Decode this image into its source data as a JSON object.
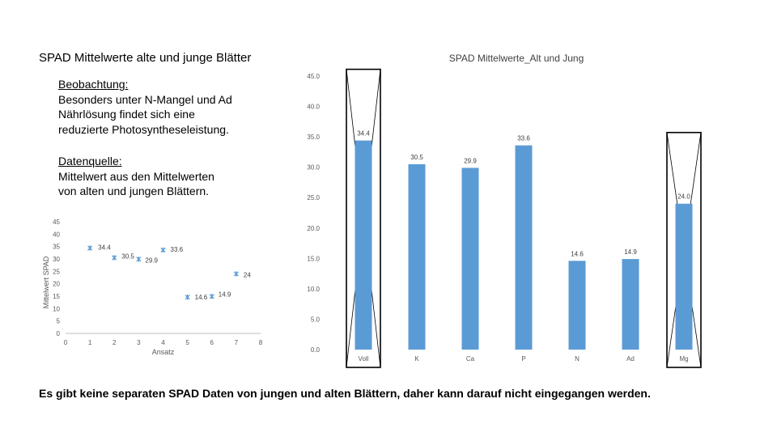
{
  "slide": {
    "title": "SPAD Mittelwerte alte und junge Blätter",
    "observation_heading": "Beobachtung:",
    "observation_lines": [
      "Besonders unter N-Mangel und Ad",
      "Nährlösung findet sich eine",
      "reduzierte Photosyntheseleistung."
    ],
    "source_heading": "Datenquelle:",
    "source_lines": [
      "Mittelwert aus den Mittelwerten",
      "von alten und jungen Blättern."
    ],
    "footer": "Es gibt keine separaten SPAD Daten von jungen und alten Blättern, daher kann darauf nicht eingegangen werden."
  },
  "chart_data": [
    {
      "type": "scatter",
      "title": "",
      "xlabel": "Ansatz",
      "ylabel": "Mittelwert SPAD",
      "xlim": [
        0,
        8
      ],
      "ylim": [
        0,
        45
      ],
      "x_ticks": [
        "0",
        "1",
        "2",
        "3",
        "4",
        "5",
        "6",
        "7",
        "8"
      ],
      "y_ticks": [
        "0",
        "5",
        "10",
        "15",
        "20",
        "25",
        "30",
        "35",
        "40",
        "45"
      ],
      "marker_color": "#5b9bd5",
      "points": [
        {
          "x": 1,
          "y": 34.4,
          "label": "34.4"
        },
        {
          "x": 2,
          "y": 30.5,
          "label": "30.5"
        },
        {
          "x": 3,
          "y": 29.9,
          "label": "29.9"
        },
        {
          "x": 4,
          "y": 33.6,
          "label": "33.6"
        },
        {
          "x": 5,
          "y": 14.6,
          "label": "14.6"
        },
        {
          "x": 6,
          "y": 14.9,
          "label": "14.9"
        },
        {
          "x": 7,
          "y": 24,
          "label": "24"
        }
      ]
    },
    {
      "type": "bar",
      "title": "SPAD Mittelwerte_Alt und Jung",
      "categories": [
        "Voll",
        "K",
        "Ca",
        "P",
        "N",
        "Ad",
        "Mg"
      ],
      "values": [
        34.4,
        30.5,
        29.9,
        33.6,
        14.6,
        14.9,
        24.0
      ],
      "value_labels": [
        "34.4",
        "30.5",
        "29.9",
        "33.6",
        "14.6",
        "14.9",
        "24.0"
      ],
      "ylim": [
        0,
        45
      ],
      "y_ticks": [
        "0.0",
        "5.0",
        "10.0",
        "15.0",
        "20.0",
        "25.0",
        "30.0",
        "35.0",
        "40.0",
        "45.0"
      ],
      "bar_color": "#5b9bd5",
      "crossed_out": [
        "Voll",
        "Mg"
      ]
    }
  ]
}
